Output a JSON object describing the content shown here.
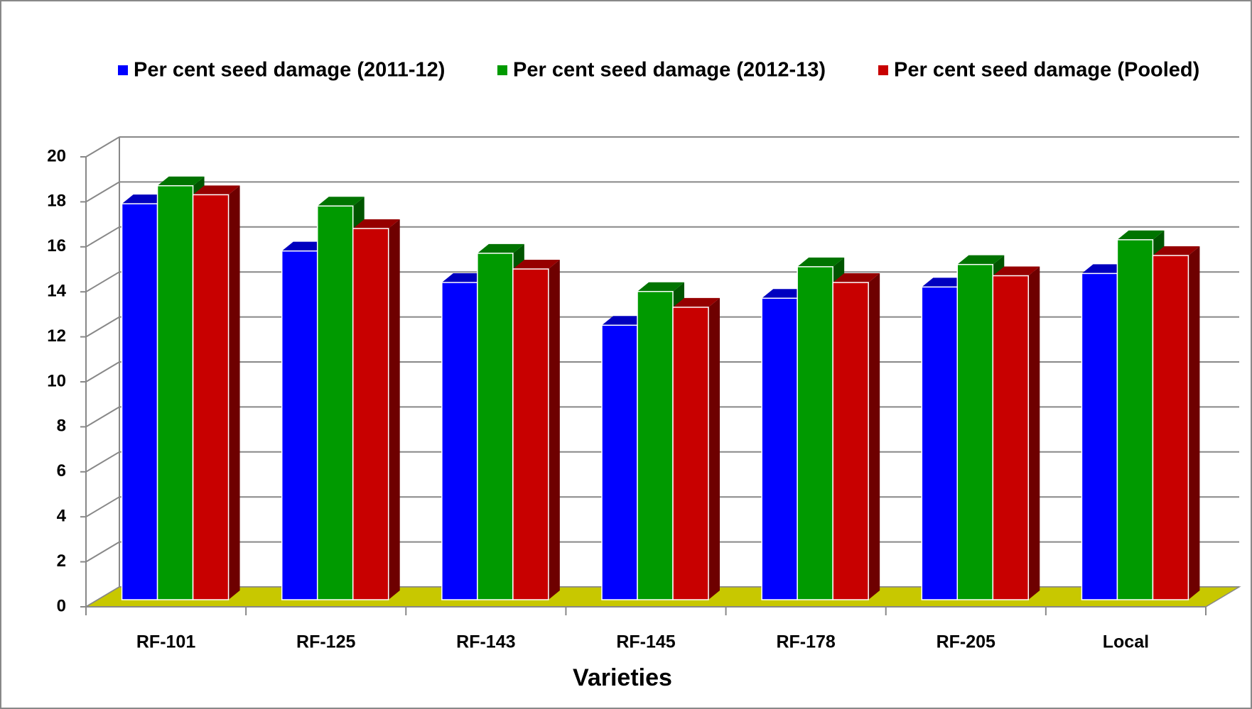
{
  "chart_data": {
    "type": "bar3d",
    "x_label": "Varieties",
    "categories": [
      "RF-101",
      "RF-125",
      "RF-143",
      "RF-145",
      "RF-178",
      "RF-205",
      "Local"
    ],
    "series": [
      {
        "name": "Per cent seed damage (2011-12)",
        "color": "#0000ff",
        "values": [
          17.6,
          15.5,
          14.1,
          12.2,
          13.4,
          13.9,
          14.5
        ]
      },
      {
        "name": "Per cent seed damage (2012-13)",
        "color": "#009a00",
        "values": [
          18.4,
          17.5,
          15.4,
          13.7,
          14.8,
          14.9,
          16.0
        ]
      },
      {
        "name": "Per cent seed damage (Pooled)",
        "color": "#c80000",
        "values": [
          18.0,
          16.5,
          14.7,
          13.0,
          14.1,
          14.4,
          15.3
        ]
      }
    ],
    "ylim": [
      0,
      20
    ],
    "yticks": [
      0,
      2,
      4,
      6,
      8,
      10,
      12,
      14,
      16,
      18,
      20
    ],
    "grid": true,
    "legend": "top",
    "floor_color": "#c8c800"
  }
}
